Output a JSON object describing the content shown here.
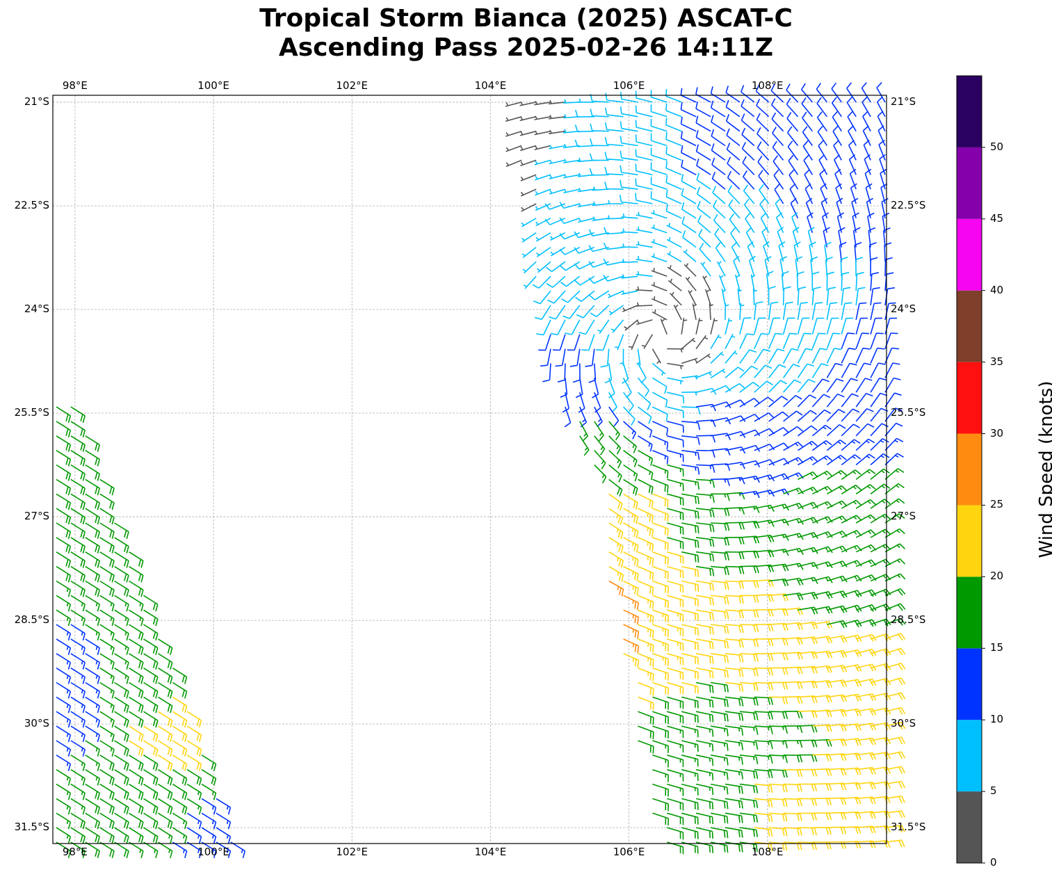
{
  "title_line1": "Tropical Storm Bianca (2025) ASCAT-C",
  "title_line2": "Ascending Pass 2025-02-26 14:11Z",
  "chart_data": {
    "type": "wind_barbs_map",
    "lon_range": [
      97.68,
      109.72
    ],
    "lat_range": [
      -31.73,
      -20.9
    ],
    "lon_ticks": [
      98,
      100,
      102,
      104,
      106,
      108
    ],
    "lon_tick_labels": [
      "98°E",
      "100°E",
      "102°E",
      "104°E",
      "106°E",
      "108°E"
    ],
    "lat_ticks": [
      -21,
      -22.5,
      -24,
      -25.5,
      -27,
      -28.5,
      -30,
      -31.5
    ],
    "lat_tick_labels": [
      "21°S",
      "22.5°S",
      "24°S",
      "25.5°S",
      "27°S",
      "28.5°S",
      "30°S",
      "31.5°S"
    ],
    "grid": true,
    "colorbar": {
      "label": "Wind Speed (knots)",
      "ticks": [
        "0",
        "5",
        "10",
        "15",
        "20",
        "25",
        "30",
        "35",
        "40",
        "45",
        "50"
      ],
      "bounds": [
        0,
        5,
        10,
        15,
        20,
        25,
        30,
        35,
        40,
        45,
        50,
        55
      ],
      "colors": [
        "#555555",
        "#00bfff",
        "#0033ff",
        "#009900",
        "#ffd510",
        "#ff8c10",
        "#ff1010",
        "#7f3f2a",
        "#f505f0",
        "#8400aa",
        "#2a0060"
      ]
    },
    "storm_center": [
      106.5,
      -24.4
    ],
    "swaths": [
      {
        "name": "east",
        "flow": "cyclonic",
        "polygon": [
          [
            104.3,
            -20.9
          ],
          [
            109.72,
            -20.9
          ],
          [
            109.72,
            -31.73
          ],
          [
            106.4,
            -31.73
          ],
          [
            105.9,
            -29
          ],
          [
            105.6,
            -27.5
          ],
          [
            105.5,
            -26.3
          ],
          [
            105.2,
            -25.8
          ],
          [
            104.8,
            -24.8
          ],
          [
            104.6,
            -23
          ],
          [
            104.4,
            -21.5
          ]
        ]
      },
      {
        "name": "west",
        "flow": "uniform",
        "wind_toward": [
          -0.8,
          0.5
        ],
        "polygon": [
          [
            97.68,
            -25.2
          ],
          [
            98.0,
            -25.4
          ],
          [
            99.0,
            -28.0
          ],
          [
            100.3,
            -31.73
          ],
          [
            97.68,
            -31.73
          ]
        ]
      }
    ],
    "speed_anchors_kt": [
      [
        106.5,
        -24.4,
        3
      ],
      [
        106.9,
        -23.8,
        4
      ],
      [
        104.5,
        -21.2,
        4
      ],
      [
        104.7,
        -22.4,
        4
      ],
      [
        105,
        -22.5,
        8
      ],
      [
        105.5,
        -23.5,
        8
      ],
      [
        106,
        -21.5,
        8
      ],
      [
        107.5,
        -21.5,
        12
      ],
      [
        109,
        -22,
        12
      ],
      [
        108,
        -24.5,
        8
      ],
      [
        107.3,
        -23.2,
        8
      ],
      [
        109.5,
        -25.5,
        12
      ],
      [
        107.5,
        -26,
        12
      ],
      [
        106,
        -25,
        8
      ],
      [
        105.2,
        -25,
        12
      ],
      [
        105.5,
        -26,
        17
      ],
      [
        105.8,
        -27.2,
        24
      ],
      [
        105.8,
        -28.2,
        27
      ],
      [
        106.2,
        -28,
        22
      ],
      [
        107,
        -27.2,
        18
      ],
      [
        108.5,
        -27.5,
        17
      ],
      [
        109.3,
        -27,
        17
      ],
      [
        107.5,
        -28.5,
        22
      ],
      [
        108.5,
        -29.5,
        22
      ],
      [
        107,
        -30.5,
        17
      ],
      [
        106.8,
        -31.5,
        18
      ],
      [
        108.3,
        -31,
        22
      ],
      [
        109.5,
        -30,
        22
      ],
      [
        108,
        -30.2,
        17
      ],
      [
        98,
        -27,
        18
      ],
      [
        99,
        -29.5,
        18
      ],
      [
        99.3,
        -30,
        22
      ],
      [
        100,
        -31.5,
        13
      ],
      [
        99,
        -31,
        18
      ],
      [
        97.8,
        -29.5,
        13
      ]
    ]
  }
}
